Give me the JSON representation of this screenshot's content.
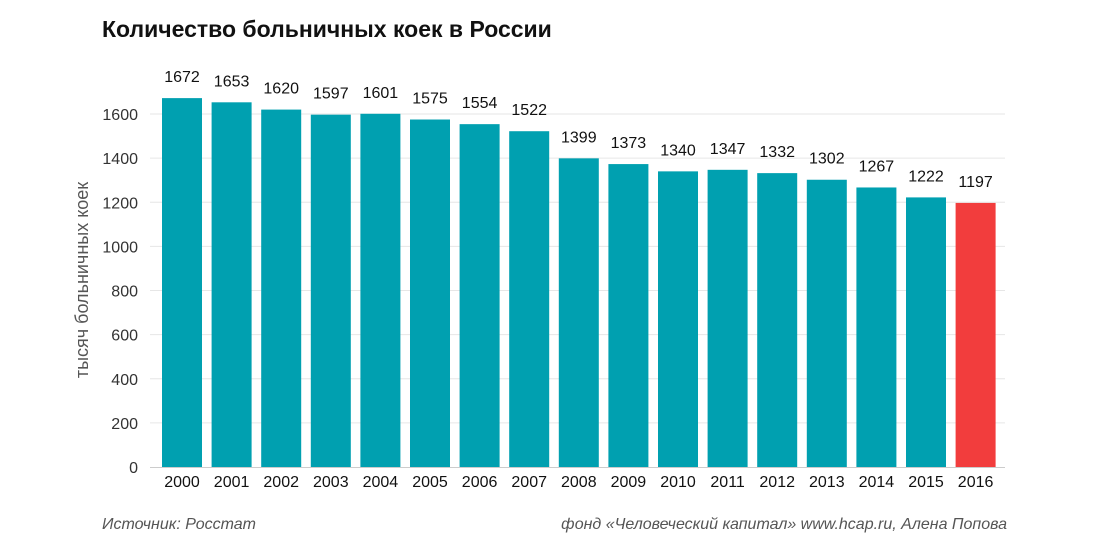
{
  "chart_data": {
    "type": "bar",
    "title": "Количество больничных коек в России",
    "xlabel": "",
    "ylabel": "тысяч больничных коек",
    "categories": [
      "2000",
      "2001",
      "2002",
      "2003",
      "2004",
      "2005",
      "2006",
      "2007",
      "2008",
      "2009",
      "2010",
      "2011",
      "2012",
      "2013",
      "2014",
      "2015",
      "2016"
    ],
    "values": [
      1672,
      1653,
      1620,
      1597,
      1601,
      1575,
      1554,
      1522,
      1399,
      1373,
      1340,
      1347,
      1332,
      1302,
      1267,
      1222,
      1197
    ],
    "ylim": [
      0,
      1700
    ],
    "yticks": [
      0,
      200,
      400,
      600,
      800,
      1000,
      1200,
      1400,
      1600
    ],
    "grid": true,
    "highlight_category": "2016",
    "colors": {
      "bar": "#00a0b0",
      "highlight": "#f23d3d",
      "grid": "#e6e6e6",
      "axis": "#cccccc",
      "label": "#111111",
      "tick": "#333333"
    }
  },
  "footer": {
    "source": "Источник: Росстат",
    "credit": "фонд «Человеческий капитал» www.hcap.ru, Алена Попова"
  }
}
